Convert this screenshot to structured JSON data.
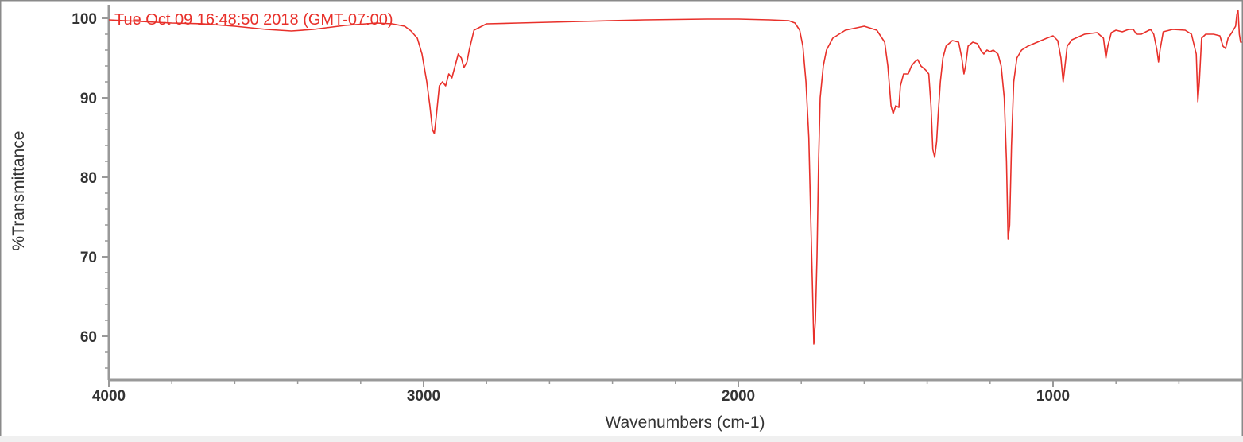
{
  "chart_data": {
    "type": "line",
    "timestamp": "Tue Oct 09 16:48:50 2018 (GMT-07:00)",
    "xlabel": "Wavenumbers (cm-1)",
    "ylabel": "%Transmittance",
    "xlim": [
      4000,
      400
    ],
    "ylim": [
      55,
      101
    ],
    "x_reversed": true,
    "grid": false,
    "x_ticks": [
      4000,
      3000,
      2000,
      1000
    ],
    "x_tick_labels": [
      "4000",
      "3000",
      "2000",
      "1000"
    ],
    "y_ticks": [
      60,
      70,
      80,
      90,
      100
    ],
    "y_tick_labels": [
      "60",
      "70",
      "80",
      "90",
      "100"
    ],
    "series": [
      {
        "color": "#e8302a",
        "points": [
          [
            4000,
            99.8
          ],
          [
            3900,
            99.6
          ],
          [
            3800,
            99.4
          ],
          [
            3700,
            99.3
          ],
          [
            3600,
            99.0
          ],
          [
            3500,
            98.6
          ],
          [
            3420,
            98.4
          ],
          [
            3350,
            98.6
          ],
          [
            3250,
            99.1
          ],
          [
            3150,
            99.4
          ],
          [
            3100,
            99.3
          ],
          [
            3060,
            99.0
          ],
          [
            3040,
            98.4
          ],
          [
            3020,
            97.5
          ],
          [
            3005,
            95.5
          ],
          [
            2990,
            92.0
          ],
          [
            2980,
            89.0
          ],
          [
            2972,
            86.0
          ],
          [
            2966,
            85.5
          ],
          [
            2960,
            87.5
          ],
          [
            2950,
            91.5
          ],
          [
            2940,
            92.0
          ],
          [
            2930,
            91.5
          ],
          [
            2920,
            93.0
          ],
          [
            2910,
            92.5
          ],
          [
            2900,
            94.0
          ],
          [
            2890,
            95.5
          ],
          [
            2880,
            95.0
          ],
          [
            2872,
            93.8
          ],
          [
            2862,
            94.5
          ],
          [
            2855,
            96.0
          ],
          [
            2840,
            98.5
          ],
          [
            2800,
            99.3
          ],
          [
            2700,
            99.4
          ],
          [
            2500,
            99.6
          ],
          [
            2300,
            99.8
          ],
          [
            2100,
            99.9
          ],
          [
            2000,
            99.9
          ],
          [
            1900,
            99.8
          ],
          [
            1840,
            99.7
          ],
          [
            1820,
            99.4
          ],
          [
            1805,
            98.5
          ],
          [
            1795,
            96.5
          ],
          [
            1785,
            92.0
          ],
          [
            1776,
            85.0
          ],
          [
            1770,
            75.0
          ],
          [
            1765,
            67.0
          ],
          [
            1760,
            59.0
          ],
          [
            1755,
            62.0
          ],
          [
            1750,
            70.0
          ],
          [
            1745,
            82.0
          ],
          [
            1740,
            90.0
          ],
          [
            1730,
            94.0
          ],
          [
            1720,
            96.0
          ],
          [
            1700,
            97.5
          ],
          [
            1660,
            98.5
          ],
          [
            1600,
            99.0
          ],
          [
            1560,
            98.5
          ],
          [
            1535,
            97.0
          ],
          [
            1525,
            94.0
          ],
          [
            1515,
            89.0
          ],
          [
            1508,
            88.0
          ],
          [
            1500,
            89.0
          ],
          [
            1490,
            88.8
          ],
          [
            1485,
            91.5
          ],
          [
            1475,
            93.0
          ],
          [
            1460,
            93.0
          ],
          [
            1450,
            94.0
          ],
          [
            1440,
            94.5
          ],
          [
            1430,
            94.8
          ],
          [
            1420,
            94.0
          ],
          [
            1405,
            93.5
          ],
          [
            1395,
            93.0
          ],
          [
            1388,
            89.0
          ],
          [
            1382,
            83.5
          ],
          [
            1376,
            82.5
          ],
          [
            1370,
            84.5
          ],
          [
            1365,
            88.0
          ],
          [
            1358,
            92.0
          ],
          [
            1350,
            95.0
          ],
          [
            1340,
            96.5
          ],
          [
            1320,
            97.2
          ],
          [
            1300,
            97.0
          ],
          [
            1290,
            95.0
          ],
          [
            1283,
            93.0
          ],
          [
            1278,
            94.0
          ],
          [
            1270,
            96.5
          ],
          [
            1255,
            97.0
          ],
          [
            1240,
            96.8
          ],
          [
            1230,
            96.0
          ],
          [
            1220,
            95.5
          ],
          [
            1210,
            96.0
          ],
          [
            1200,
            95.8
          ],
          [
            1190,
            96.0
          ],
          [
            1175,
            95.5
          ],
          [
            1165,
            94.0
          ],
          [
            1155,
            90.0
          ],
          [
            1148,
            82.0
          ],
          [
            1143,
            72.2
          ],
          [
            1138,
            74.0
          ],
          [
            1132,
            84.0
          ],
          [
            1125,
            92.0
          ],
          [
            1115,
            95.0
          ],
          [
            1100,
            96.0
          ],
          [
            1080,
            96.5
          ],
          [
            1050,
            97.0
          ],
          [
            1020,
            97.5
          ],
          [
            1000,
            97.8
          ],
          [
            985,
            97.2
          ],
          [
            975,
            95.0
          ],
          [
            968,
            92.0
          ],
          [
            962,
            94.0
          ],
          [
            955,
            96.5
          ],
          [
            940,
            97.3
          ],
          [
            900,
            98.0
          ],
          [
            860,
            98.2
          ],
          [
            840,
            97.5
          ],
          [
            832,
            95.0
          ],
          [
            826,
            96.5
          ],
          [
            815,
            98.2
          ],
          [
            800,
            98.5
          ],
          [
            780,
            98.3
          ],
          [
            760,
            98.6
          ],
          [
            745,
            98.6
          ],
          [
            735,
            98.0
          ],
          [
            720,
            98.0
          ],
          [
            705,
            98.3
          ],
          [
            690,
            98.6
          ],
          [
            680,
            98.0
          ],
          [
            670,
            96.0
          ],
          [
            665,
            94.5
          ],
          [
            660,
            96.0
          ],
          [
            650,
            98.3
          ],
          [
            620,
            98.6
          ],
          [
            580,
            98.5
          ],
          [
            560,
            98.0
          ],
          [
            545,
            95.5
          ],
          [
            540,
            89.5
          ],
          [
            535,
            92.0
          ],
          [
            528,
            97.5
          ],
          [
            515,
            98.0
          ],
          [
            490,
            98.0
          ],
          [
            470,
            97.8
          ],
          [
            460,
            96.5
          ],
          [
            452,
            96.2
          ],
          [
            444,
            97.5
          ],
          [
            432,
            98.2
          ],
          [
            420,
            99.0
          ],
          [
            416,
            100.5
          ],
          [
            412,
            101.0
          ],
          [
            408,
            98.0
          ],
          [
            404,
            97.0
          ],
          [
            400,
            97.0
          ]
        ]
      }
    ]
  }
}
